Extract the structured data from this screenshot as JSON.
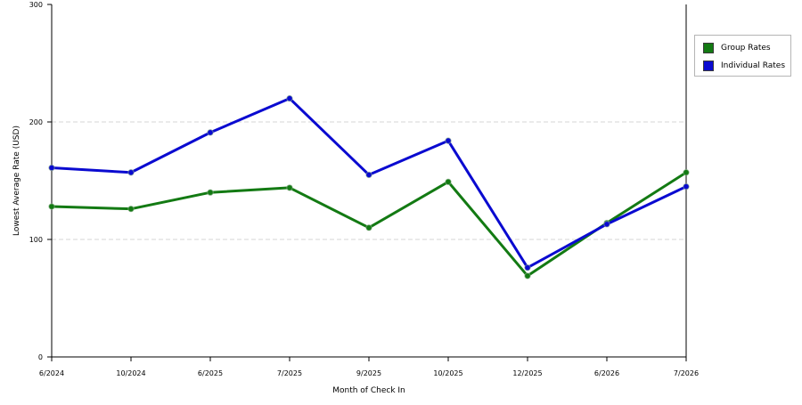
{
  "chart_data": {
    "type": "line",
    "title": "",
    "xlabel": "Month of Check In",
    "ylabel": "Lowest Average Rate (USD)",
    "categories": [
      "6/2024",
      "10/2024",
      "6/2025",
      "7/2025",
      "9/2025",
      "10/2025",
      "12/2025",
      "6/2026",
      "7/2026"
    ],
    "ylim": [
      0,
      300
    ],
    "yticks": [
      0,
      100,
      200,
      300
    ],
    "grid": "horizontal-dashed",
    "legend_position": "right",
    "series": [
      {
        "name": "Group Rates",
        "color": "#137a13",
        "values": [
          128,
          126,
          140,
          144,
          110,
          149,
          69,
          114,
          157
        ]
      },
      {
        "name": "Individual Rates",
        "color": "#0a0ad0",
        "values": [
          161,
          157,
          191,
          220,
          155,
          184,
          76,
          113,
          145
        ]
      }
    ]
  }
}
